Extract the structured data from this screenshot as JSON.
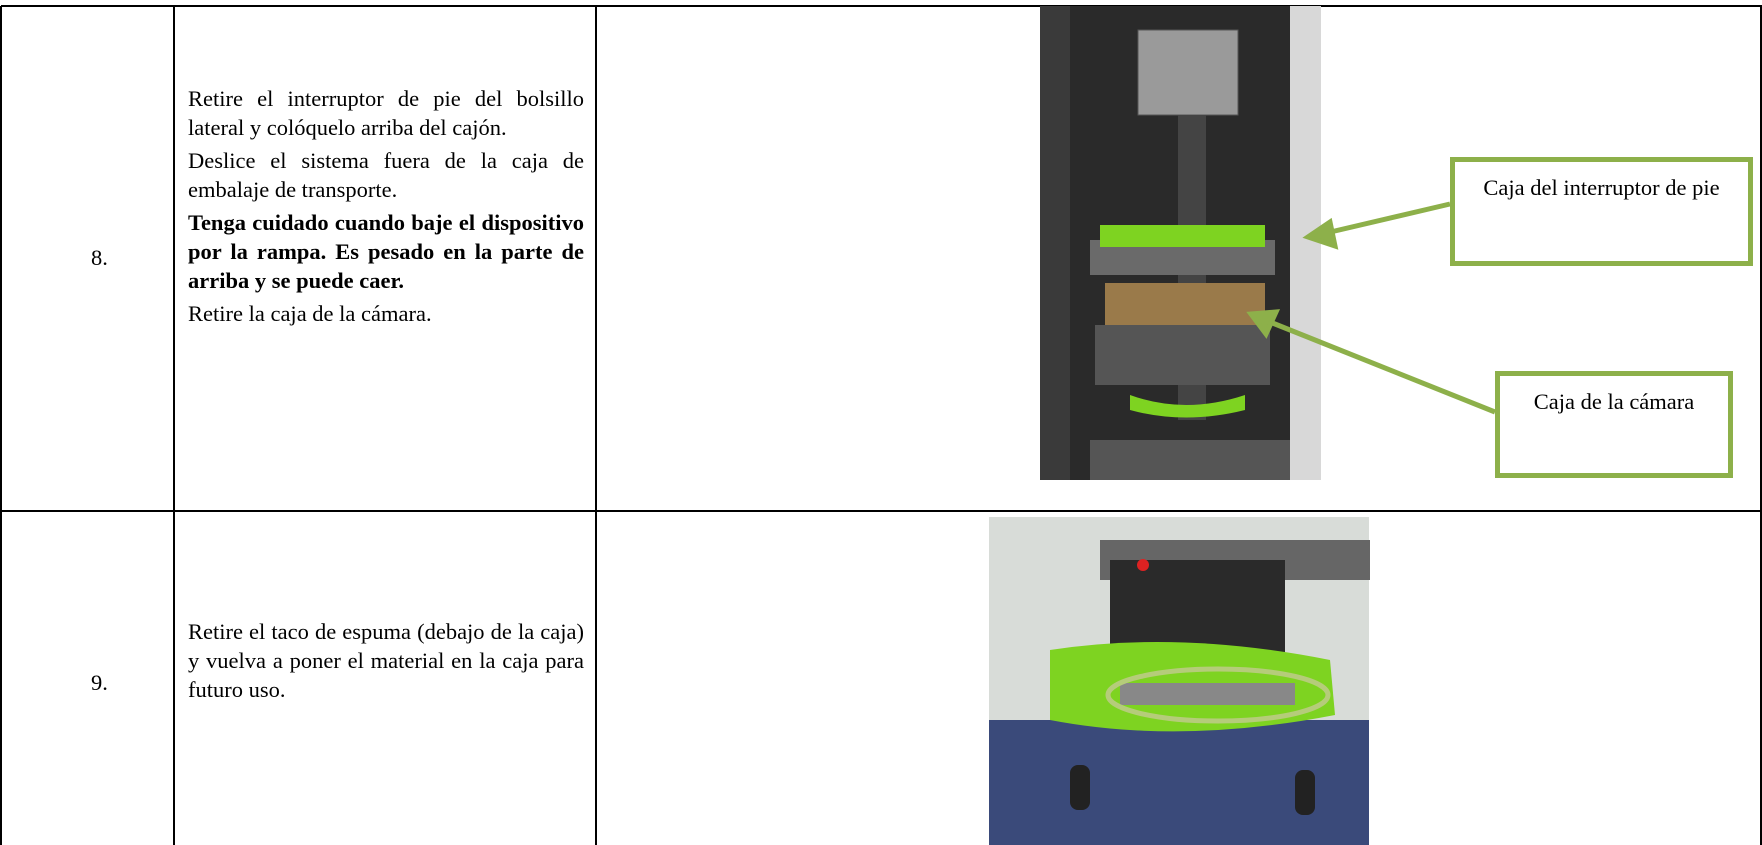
{
  "table": {
    "rows": [
      {
        "number": "8.",
        "paragraphs": [
          {
            "text": "Retire el interruptor de pie del bolsillo lateral y colóquelo arriba del cajón.",
            "bold": false
          },
          {
            "text": "Deslice el sistema fuera de la caja de embalaje de transporte.",
            "bold": false
          },
          {
            "text": "Tenga cuidado cuando baje el dispositivo por la rampa. Es pesado en la parte de arriba y se puede caer.",
            "bold": true
          },
          {
            "text": "Retire la caja de la cámara.",
            "bold": false
          }
        ],
        "callouts": [
          "Caja del interruptor de pie",
          "Caja de la cámara"
        ]
      },
      {
        "number": "9.",
        "paragraphs": [
          {
            "text": "Retire el taco de espuma (debajo de la caja) y vuelva a poner el material en la caja para futuro uso.",
            "bold": false
          }
        ],
        "callouts": []
      }
    ]
  }
}
